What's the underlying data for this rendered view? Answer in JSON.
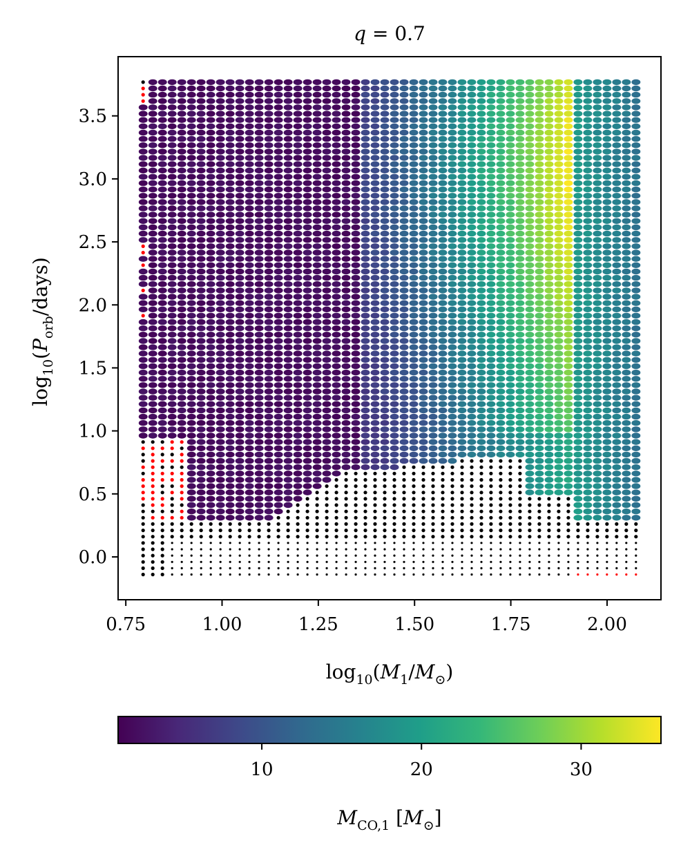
{
  "chart_data": {
    "type": "heatmap",
    "title": "q = 0.7",
    "xlabel": "log10(M1/M⊙)",
    "ylabel": "log10(Porb/days)",
    "xlim": [
      0.73,
      2.14
    ],
    "ylim": [
      -0.34,
      3.97
    ],
    "xticks": [
      0.75,
      1.0,
      1.25,
      1.5,
      1.75,
      2.0
    ],
    "xtick_labels": [
      "0.75",
      "1.00",
      "1.25",
      "1.50",
      "1.75",
      "2.00"
    ],
    "yticks": [
      0.0,
      0.5,
      1.0,
      1.5,
      2.0,
      2.5,
      3.0,
      3.5
    ],
    "ytick_labels": [
      "0.0",
      "0.5",
      "1.0",
      "1.5",
      "2.0",
      "2.5",
      "3.0",
      "3.5"
    ],
    "grid": {
      "x_start": 0.795,
      "x_end": 2.08,
      "x_step": 0.0251,
      "y_start": -0.14,
      "y_end": 3.79,
      "y_step": 0.0501
    },
    "colorbar": {
      "label": "MCO,1 [M⊙]",
      "range": [
        1.0,
        35.0
      ],
      "ticks": [
        10,
        20,
        30
      ],
      "tick_labels": [
        "10",
        "20",
        "30"
      ],
      "colormap": "viridis",
      "placement": "bottom"
    },
    "colormap_stops": [
      "#440154",
      "#482878",
      "#3e4989",
      "#31688e",
      "#26828e",
      "#1f9e89",
      "#35b779",
      "#6ece58",
      "#b5de2b",
      "#fde725"
    ],
    "marker_colors": {
      "failed": "#000000",
      "unstable": "#ff0000"
    },
    "description_of_regions": {
      "low_mass_region_value": 2.0,
      "low_period_cutoff": 0.3,
      "peak_value": 33.0,
      "peak_x": 1.88
    }
  }
}
